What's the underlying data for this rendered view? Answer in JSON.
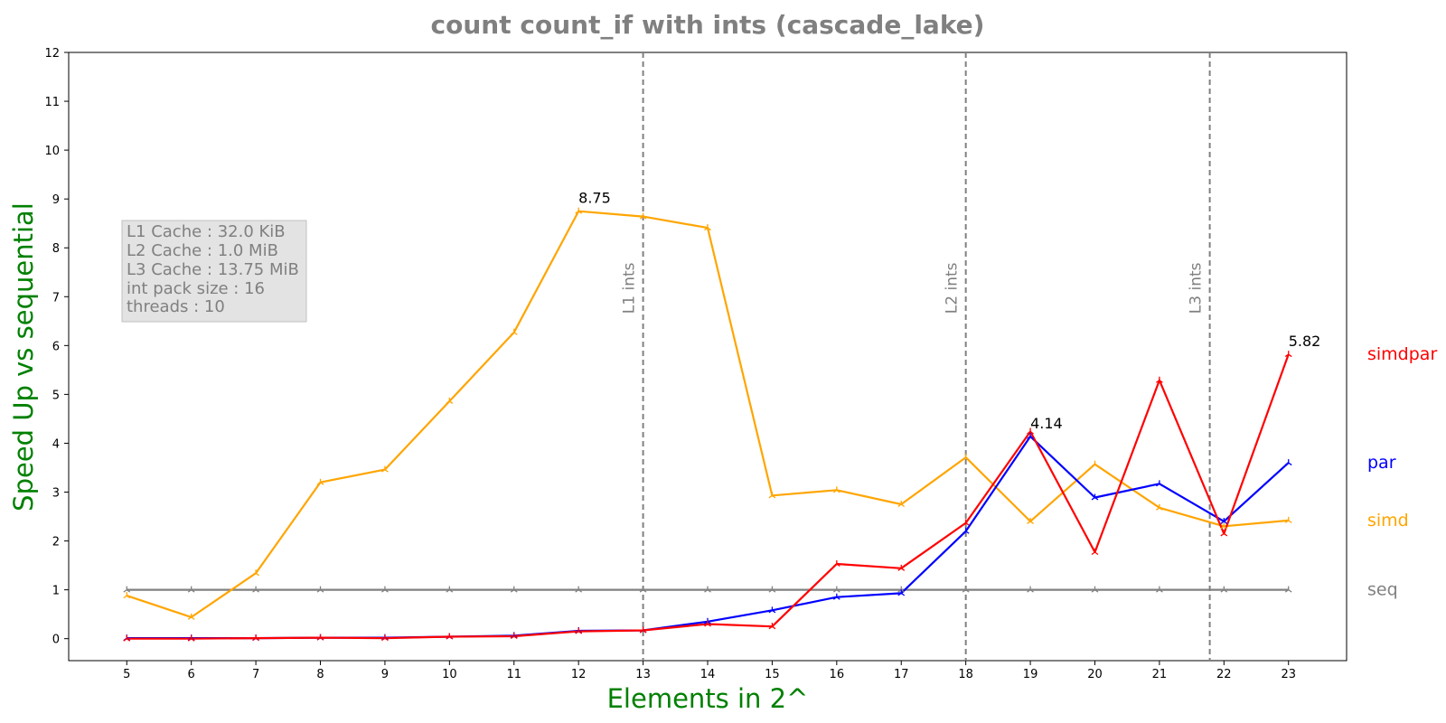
{
  "chart_data": {
    "type": "line",
    "title": "count count_if with ints  (cascade_lake)",
    "xlabel": "Elements in 2^",
    "ylabel": "Speed Up vs sequential",
    "x": [
      5,
      6,
      7,
      8,
      9,
      10,
      11,
      12,
      13,
      14,
      15,
      16,
      17,
      18,
      19,
      20,
      21,
      22,
      23
    ],
    "xticks": [
      5,
      6,
      7,
      8,
      9,
      10,
      11,
      12,
      13,
      14,
      15,
      16,
      17,
      18,
      19,
      20,
      21,
      22,
      23
    ],
    "yticks": [
      0,
      1,
      2,
      3,
      4,
      5,
      6,
      7,
      8,
      9,
      10,
      11,
      12
    ],
    "xlim": [
      4.1,
      23.9
    ],
    "ylim": [
      -0.45,
      12
    ],
    "grid": false,
    "series": [
      {
        "name": "seq",
        "color": "#808080",
        "values": [
          1,
          1,
          1,
          1,
          1,
          1,
          1,
          1,
          1,
          1,
          1,
          1,
          1,
          1,
          1,
          1,
          1,
          1,
          1
        ]
      },
      {
        "name": "simd",
        "color": "#FFA500",
        "values": [
          0.88,
          0.44,
          1.34,
          3.2,
          3.46,
          4.86,
          6.27,
          8.75,
          8.64,
          8.41,
          2.93,
          3.04,
          2.75,
          3.71,
          2.4,
          3.57,
          2.68,
          2.3,
          2.42
        ]
      },
      {
        "name": "par",
        "color": "#0000FF",
        "values": [
          0.01,
          0.01,
          0.01,
          0.02,
          0.02,
          0.04,
          0.06,
          0.16,
          0.17,
          0.35,
          0.58,
          0.85,
          0.93,
          2.2,
          4.14,
          2.89,
          3.17,
          2.4,
          3.6
        ]
      },
      {
        "name": "simdpar",
        "color": "#FF0000",
        "values": [
          0.0,
          0.0,
          0.01,
          0.02,
          0.01,
          0.04,
          0.05,
          0.15,
          0.17,
          0.3,
          0.25,
          1.53,
          1.44,
          2.37,
          4.24,
          1.77,
          5.29,
          2.15,
          5.82
        ]
      }
    ],
    "annotations": [
      {
        "text": "8.75",
        "x": 12,
        "y": 8.75
      },
      {
        "text": "4.14",
        "x": 19,
        "y": 4.14
      },
      {
        "text": "5.82",
        "x": 23,
        "y": 5.82
      }
    ],
    "vlines": [
      {
        "x": 13,
        "label": "L1 ints"
      },
      {
        "x": 18,
        "label": "L2 ints"
      },
      {
        "x": 21.78,
        "label": "L3 ints"
      }
    ],
    "legend_position": "right",
    "info_box": [
      "L1 Cache : 32.0 KiB",
      "L2 Cache : 1.0 MiB",
      "L3 Cache : 13.75 MiB",
      "int pack size : 16",
      "threads : 10"
    ]
  }
}
